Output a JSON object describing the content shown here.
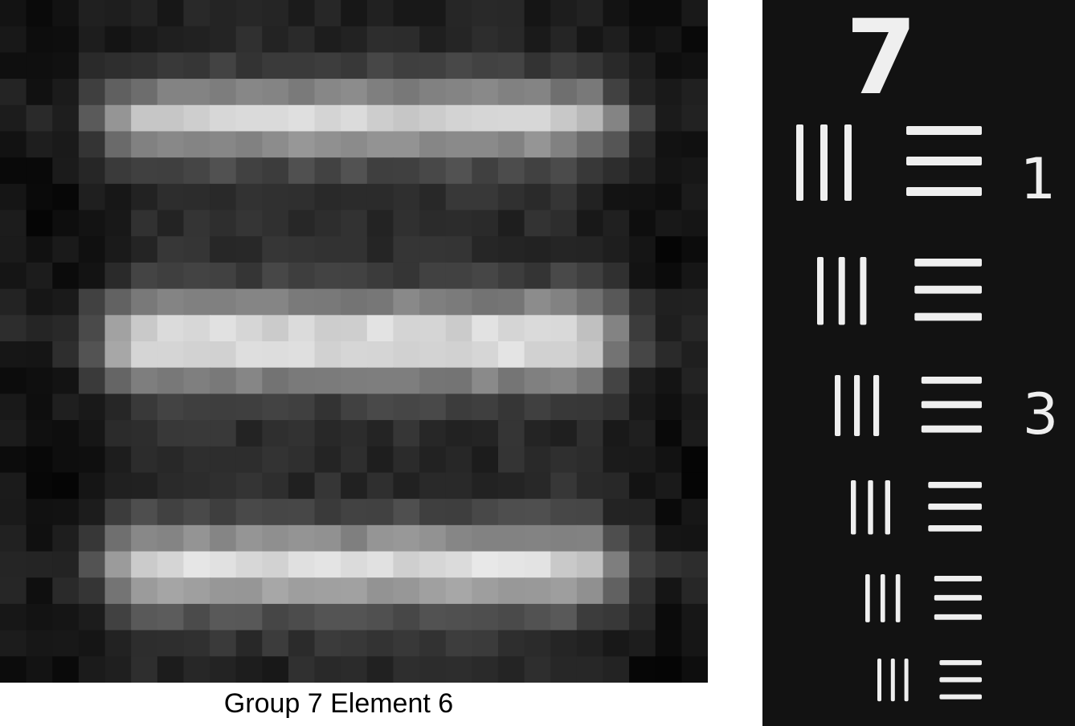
{
  "caption": "Group 7 Element 6",
  "target": {
    "group_number": "7",
    "element_labels": [
      "1",
      "3"
    ]
  },
  "colors": {
    "background": "#0e0e0e",
    "bar_core": "#dcdcdc",
    "bar_edge": "#8a8a8a",
    "caption_text": "#000000",
    "target_foreground": "#efefef"
  }
}
